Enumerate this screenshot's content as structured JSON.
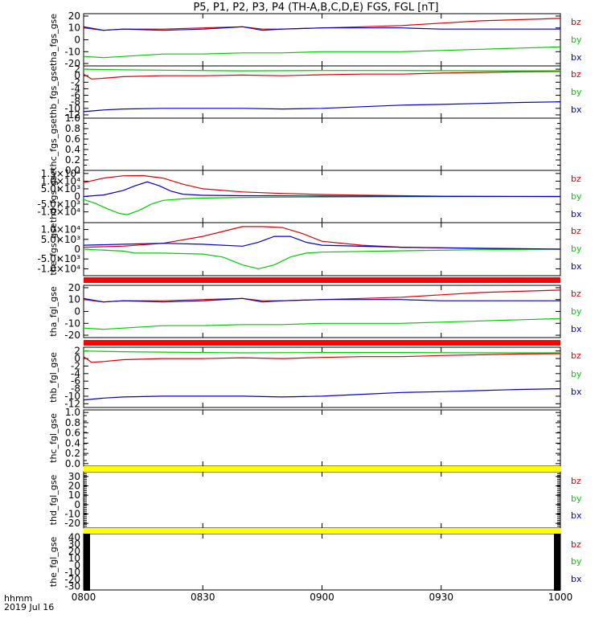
{
  "title": "P5, P1, P2, P3, P4 (TH-A,B,C,D,E) FGS, FGL [nT]",
  "footer": {
    "line1": "hhmm",
    "line2": "2019 Jul 16"
  },
  "colors": {
    "bz": "#dd0000",
    "by": "#00cc00",
    "bx": "#0000cc",
    "red_bar": "#ff0000",
    "yellow_bar": "#ffff00"
  },
  "chart_data": {
    "type": "line",
    "x_axis": {
      "range_minutes": [
        0,
        120
      ],
      "tick_minutes": [
        0,
        30,
        60,
        90,
        120
      ],
      "tick_labels": [
        "0800",
        "0830",
        "0900",
        "0930",
        "1000"
      ]
    },
    "panels": [
      {
        "ylabel": "tha_fgs_gse",
        "ylim": [
          -22,
          22
        ],
        "yticks": [
          "20",
          "10",
          "0",
          "-10",
          "-20"
        ],
        "ytick_values": [
          20,
          10,
          0,
          -10,
          -20
        ],
        "legend": [
          "bz",
          "by",
          "bx"
        ],
        "series": [
          {
            "name": "bz",
            "x": [
              0,
              5,
              10,
              20,
              30,
              40,
              45,
              50,
              60,
              70,
              80,
              90,
              100,
              110,
              120
            ],
            "y": [
              10,
              8,
              9,
              9,
              10,
              11,
              9,
              9,
              10,
              11,
              12,
              14,
              16,
              17,
              18
            ]
          },
          {
            "name": "by",
            "x": [
              0,
              5,
              10,
              20,
              30,
              40,
              50,
              60,
              70,
              80,
              90,
              100,
              110,
              120
            ],
            "y": [
              -14,
              -15,
              -14,
              -12,
              -12,
              -11,
              -11,
              -10,
              -10,
              -10,
              -9,
              -8,
              -7,
              -6
            ]
          },
          {
            "name": "bx",
            "x": [
              0,
              5,
              10,
              20,
              30,
              40,
              45,
              50,
              60,
              70,
              80,
              90,
              100,
              110,
              120
            ],
            "y": [
              11,
              8,
              9,
              8,
              9,
              11,
              8,
              9,
              10,
              10,
              10,
              9,
              9,
              9,
              9
            ]
          }
        ]
      },
      {
        "ylabel": "thb_fgs_gse",
        "ylim": [
          -13,
          3
        ],
        "yticks": [
          "2",
          "0",
          "-2",
          "-4",
          "-6",
          "-8",
          "-10",
          "-12"
        ],
        "ytick_values": [
          2,
          0,
          -2,
          -4,
          -6,
          -8,
          -10,
          -12
        ],
        "legend": [
          "bz",
          "by",
          "bx"
        ],
        "series": [
          {
            "name": "bz",
            "x": [
              0,
              2,
              5,
              10,
              20,
              30,
              40,
              50,
              60,
              70,
              80,
              90,
              100,
              110,
              120
            ],
            "y": [
              0.5,
              -1,
              -0.8,
              -0.3,
              0,
              0,
              0.2,
              0,
              0.3,
              0.5,
              0.5,
              0.8,
              1,
              1.2,
              1.3
            ]
          },
          {
            "name": "by",
            "x": [
              0,
              10,
              20,
              40,
              60,
              80,
              100,
              120
            ],
            "y": [
              2,
              1.8,
              1.7,
              1.5,
              1.6,
              1.6,
              1.5,
              1.5
            ]
          },
          {
            "name": "bx",
            "x": [
              0,
              5,
              10,
              20,
              30,
              40,
              50,
              60,
              70,
              80,
              90,
              100,
              110,
              120
            ],
            "y": [
              -11,
              -10.5,
              -10.2,
              -10,
              -10,
              -10,
              -10.2,
              -10,
              -9.5,
              -9,
              -8.8,
              -8.5,
              -8.2,
              -8
            ]
          }
        ]
      },
      {
        "ylabel": "thc_fgs_gse",
        "ylim": [
          0,
          1
        ],
        "yticks": [
          "1.0",
          "0.8",
          "0.6",
          "0.4",
          "0.2",
          "0.0"
        ],
        "ytick_values": [
          1.0,
          0.8,
          0.6,
          0.4,
          0.2,
          0.0
        ],
        "minor_ticks": 10,
        "legend": [],
        "series": []
      },
      {
        "ylabel": "thd_fgs_gse",
        "ylim": [
          -17000,
          17000
        ],
        "yticks": [
          "1.5×10⁴",
          "1.0×10⁴",
          "5.0×10³",
          "0",
          "-5.0×10³",
          "-1.0×10⁴"
        ],
        "ytick_values": [
          15000,
          10000,
          5000,
          0,
          -5000,
          -10000
        ],
        "legend": [
          "bz",
          "by",
          "bx"
        ],
        "series": [
          {
            "name": "bz",
            "x": [
              0,
              5,
              10,
              15,
              20,
              25,
              30,
              40,
              50,
              60,
              70,
              80,
              90,
              120
            ],
            "y": [
              9000,
              12000,
              13500,
              13600,
              12000,
              8000,
              5000,
              3000,
              2000,
              1300,
              900,
              500,
              200,
              0
            ]
          },
          {
            "name": "by",
            "x": [
              0,
              3,
              6,
              9,
              11,
              14,
              17,
              20,
              25,
              30,
              40,
              60,
              90,
              120
            ],
            "y": [
              -2000,
              -4500,
              -8000,
              -11000,
              -11800,
              -9000,
              -5000,
              -2500,
              -1500,
              -1000,
              -600,
              -300,
              -100,
              0
            ]
          },
          {
            "name": "bx",
            "x": [
              0,
              5,
              10,
              13,
              16,
              19,
              22,
              25,
              30,
              40,
              60,
              90,
              120
            ],
            "y": [
              0,
              1000,
              4000,
              7000,
              9500,
              7000,
              3500,
              1500,
              800,
              500,
              300,
              100,
              0
            ]
          }
        ]
      },
      {
        "ylabel": "the_fgs_gse",
        "ylim": [
          -13500,
          13500
        ],
        "yticks": [
          "1.0×10⁴",
          "5.0×10³",
          "0",
          "-5.0×10³",
          "-1.0×10⁴"
        ],
        "ytick_values": [
          10000,
          5000,
          0,
          -5000,
          -10000
        ],
        "legend": [
          "bz",
          "by",
          "bx"
        ],
        "series": [
          {
            "name": "bz",
            "x": [
              0,
              10,
              20,
              30,
              35,
              40,
              45,
              50,
              55,
              60,
              70,
              80,
              100,
              120
            ],
            "y": [
              1000,
              1500,
              3000,
              6500,
              9000,
              11500,
              11500,
              11000,
              8000,
              4000,
              2000,
              1000,
              300,
              0
            ]
          },
          {
            "name": "by",
            "x": [
              0,
              10,
              13,
              20,
              30,
              35,
              40,
              44,
              48,
              52,
              56,
              60,
              80,
              100,
              120
            ],
            "y": [
              0,
              -1000,
              -2000,
              -2000,
              -2500,
              -4000,
              -8000,
              -10000,
              -8000,
              -4000,
              -2000,
              -1500,
              -800,
              -300,
              0
            ]
          },
          {
            "name": "bx",
            "x": [
              0,
              10,
              20,
              30,
              40,
              44,
              48,
              52,
              56,
              60,
              80,
              100,
              120
            ],
            "y": [
              2000,
              2500,
              3000,
              2500,
              1500,
              3500,
              6500,
              6500,
              3500,
              2000,
              1000,
              500,
              0
            ]
          }
        ]
      },
      {
        "ylabel": "tha_fgl_gse",
        "ylim": [
          -22,
          22
        ],
        "yticks": [
          "20",
          "10",
          "0",
          "-10",
          "-20"
        ],
        "ytick_values": [
          20,
          10,
          0,
          -10,
          -20
        ],
        "legend": [
          "bz",
          "by",
          "bx"
        ],
        "series": [
          {
            "name": "bz",
            "x": [
              0,
              5,
              10,
              20,
              30,
              40,
              45,
              50,
              60,
              70,
              80,
              90,
              100,
              110,
              120
            ],
            "y": [
              10,
              8,
              9,
              9,
              10,
              11,
              9,
              9,
              10,
              11,
              12,
              14,
              16,
              17,
              18
            ]
          },
          {
            "name": "by",
            "x": [
              0,
              5,
              10,
              20,
              30,
              40,
              50,
              60,
              70,
              80,
              90,
              100,
              110,
              120
            ],
            "y": [
              -14,
              -15,
              -14,
              -12,
              -12,
              -11,
              -11,
              -10,
              -10,
              -10,
              -9,
              -8,
              -7,
              -6
            ]
          },
          {
            "name": "bx",
            "x": [
              0,
              5,
              10,
              20,
              30,
              40,
              45,
              50,
              60,
              70,
              80,
              90,
              100,
              110,
              120
            ],
            "y": [
              11,
              8,
              9,
              8,
              9,
              11,
              8,
              9,
              10,
              10,
              10,
              9,
              9,
              9,
              9
            ]
          }
        ]
      },
      {
        "ylabel": "thb_fgl_gse",
        "ylim": [
          -13,
          3
        ],
        "yticks": [
          "2",
          "0",
          "-2",
          "-4",
          "-6",
          "-8",
          "-10",
          "-12"
        ],
        "ytick_values": [
          2,
          0,
          -2,
          -4,
          -6,
          -8,
          -10,
          -12
        ],
        "legend": [
          "bz",
          "by",
          "bx"
        ],
        "series": [
          {
            "name": "bz",
            "x": [
              0,
              2,
              5,
              10,
              20,
              30,
              40,
              50,
              60,
              70,
              80,
              90,
              100,
              110,
              120
            ],
            "y": [
              0.5,
              -1,
              -0.8,
              -0.3,
              0,
              0,
              0.2,
              0,
              0.3,
              0.5,
              0.5,
              0.8,
              1,
              1.2,
              1.3
            ]
          },
          {
            "name": "by",
            "x": [
              0,
              10,
              20,
              40,
              60,
              80,
              100,
              120
            ],
            "y": [
              2,
              1.8,
              1.7,
              1.5,
              1.6,
              1.6,
              1.5,
              1.5
            ]
          },
          {
            "name": "bx",
            "x": [
              0,
              5,
              10,
              20,
              30,
              40,
              50,
              60,
              70,
              80,
              90,
              100,
              110,
              120
            ],
            "y": [
              -11,
              -10.5,
              -10.2,
              -10,
              -10,
              -10,
              -10.2,
              -10,
              -9.5,
              -9,
              -8.8,
              -8.5,
              -8.2,
              -8
            ]
          }
        ]
      },
      {
        "ylabel": "thc_fgl_gse",
        "ylim": [
          -0.05,
          1.05
        ],
        "yticks": [
          "1.0",
          "0.8",
          "0.6",
          "0.4",
          "0.2",
          "0.0"
        ],
        "ytick_values": [
          1.0,
          0.8,
          0.6,
          0.4,
          0.2,
          0.0
        ],
        "minor_ticks": 10,
        "legend": [],
        "series": []
      },
      {
        "ylabel": "thd_fgl_gse",
        "ylim": [
          -25,
          35
        ],
        "yticks": [
          "30",
          "20",
          "10",
          "0",
          "-10",
          "-20"
        ],
        "ytick_values": [
          30,
          20,
          10,
          0,
          -10,
          -20
        ],
        "minor_ticks": 30,
        "legend": [
          "bz",
          "by",
          "bx"
        ],
        "series": []
      },
      {
        "ylabel": "the_fgl_gse",
        "ylim": [
          -35,
          45
        ],
        "yticks": [
          "40",
          "30",
          "20",
          "10",
          "0",
          "-10",
          "-20",
          "-30"
        ],
        "ytick_values": [
          40,
          30,
          20,
          10,
          0,
          -10,
          -20,
          -30
        ],
        "minor_ticks": 40,
        "dense_edges": true,
        "legend": [
          "bz",
          "by",
          "bx"
        ],
        "series": []
      }
    ],
    "bars": [
      {
        "after_panel": 4,
        "color": "red"
      },
      {
        "after_panel": 5,
        "color": "red"
      },
      {
        "after_panel": 7,
        "color": "yellow"
      },
      {
        "after_panel": 8,
        "color": "yellow"
      }
    ]
  }
}
